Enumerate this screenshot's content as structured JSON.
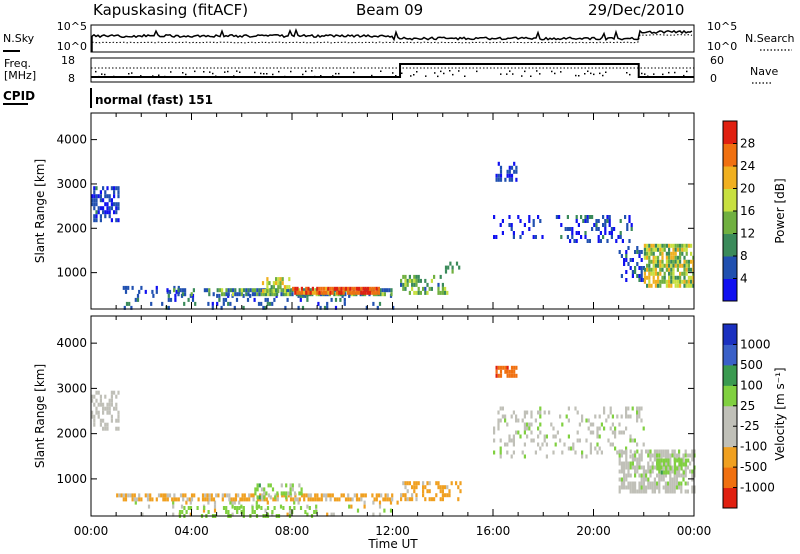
{
  "header": {
    "station": "Kapuskasing (fitACF)",
    "beam": "Beam 09",
    "date": "29/Dec/2010"
  },
  "side_labels": {
    "nsky": "N.Sky",
    "nsearch": "N.Search",
    "freq": "Freq.",
    "freq_unit": "[MHz]",
    "nave": "Nave",
    "cpid": "CPID"
  },
  "cpid_text": "normal (fast) 151",
  "top_axes": {
    "noise_left_ticks": [
      "10^5",
      "10^0"
    ],
    "noise_right_ticks": [
      "10^5",
      "10^0"
    ],
    "freq_ticks": [
      "18",
      "8"
    ],
    "nave_ticks": [
      "60",
      "0"
    ]
  },
  "colors": {
    "power_scale": [
      "#1010f0",
      "#2050b0",
      "#3a8a5a",
      "#70b040",
      "#c8e040",
      "#f0b020",
      "#f07010",
      "#e02010"
    ],
    "velocity_scale": [
      "#1a30c0",
      "#3a60c8",
      "#3a9a50",
      "#80d040",
      "#c0c0b8",
      "#c0c0b8",
      "#f0a020",
      "#f07010",
      "#e02010"
    ]
  },
  "chart_data": [
    {
      "type": "heatmap",
      "title": "Power",
      "quantity": "Power",
      "xlabel": "",
      "ylabel": "Slant Range [km]",
      "xlim": [
        "00:00",
        "24:00"
      ],
      "ylim": [
        180,
        4600
      ],
      "x_ticks": [
        "00:00",
        "04:00",
        "08:00",
        "12:00",
        "16:00",
        "20:00",
        "00:00"
      ],
      "y_ticks": [
        1000,
        2000,
        3000,
        4000
      ],
      "colorbar": {
        "label": "Power [dB]",
        "range": [
          0,
          32
        ],
        "ticks": [
          "4",
          "8",
          "12",
          "16",
          "20",
          "24",
          "28"
        ]
      },
      "regions": [
        {
          "t0": 1.3,
          "t1": 12.3,
          "r0": 180,
          "r1": 520,
          "level": 0.2,
          "density": 0.15,
          "spread": 0.1
        },
        {
          "t0": 0.0,
          "t1": 1.1,
          "r0": 2150,
          "r1": 2950,
          "level": 0.15,
          "density": 0.55,
          "spread": 0.12
        },
        {
          "t0": 1.0,
          "t1": 3.5,
          "r0": 550,
          "r1": 700,
          "level": 0.15,
          "density": 0.35,
          "spread": 0.1
        },
        {
          "t0": 3.0,
          "t1": 5.0,
          "r0": 520,
          "r1": 650,
          "level": 0.25,
          "density": 0.4,
          "spread": 0.15
        },
        {
          "t0": 5.0,
          "t1": 12.0,
          "r0": 520,
          "r1": 650,
          "level": 0.35,
          "density": 0.75,
          "spread": 0.2
        },
        {
          "t0": 6.8,
          "t1": 8.0,
          "r0": 560,
          "r1": 900,
          "level": 0.5,
          "density": 0.45,
          "spread": 0.2
        },
        {
          "t0": 8.0,
          "t1": 11.5,
          "r0": 570,
          "r1": 680,
          "level": 0.85,
          "density": 0.9,
          "spread": 0.12
        },
        {
          "t0": 12.3,
          "t1": 14.2,
          "r0": 560,
          "r1": 950,
          "level": 0.4,
          "density": 0.5,
          "spread": 0.2
        },
        {
          "t0": 14.0,
          "t1": 14.7,
          "r0": 1000,
          "r1": 1250,
          "level": 0.3,
          "density": 0.4,
          "spread": 0.1
        },
        {
          "t0": 16.1,
          "t1": 16.9,
          "r0": 3050,
          "r1": 3500,
          "level": 0.15,
          "density": 0.45,
          "spread": 0.1
        },
        {
          "t0": 16.0,
          "t1": 18.0,
          "r0": 1800,
          "r1": 2300,
          "level": 0.1,
          "density": 0.25,
          "spread": 0.1
        },
        {
          "t0": 18.5,
          "t1": 21.5,
          "r0": 1700,
          "r1": 2300,
          "level": 0.15,
          "density": 0.3,
          "spread": 0.15
        },
        {
          "t0": 21.0,
          "t1": 22.0,
          "r0": 800,
          "r1": 1600,
          "level": 0.15,
          "density": 0.35,
          "spread": 0.15
        },
        {
          "t0": 22.0,
          "t1": 24.0,
          "r0": 700,
          "r1": 1650,
          "level": 0.5,
          "density": 0.75,
          "spread": 0.25
        }
      ]
    },
    {
      "type": "heatmap",
      "title": "Velocity",
      "quantity": "Velocity",
      "xlabel": "Time UT",
      "ylabel": "Slant Range [km]",
      "xlim": [
        "00:00",
        "24:00"
      ],
      "ylim": [
        180,
        4600
      ],
      "x_ticks": [
        "00:00",
        "04:00",
        "08:00",
        "12:00",
        "16:00",
        "20:00",
        "00:00"
      ],
      "y_ticks": [
        1000,
        2000,
        3000,
        4000
      ],
      "colorbar": {
        "label": "Velocity [m s⁻¹]",
        "ticks": [
          "1000",
          "500",
          "100",
          "25",
          "-25",
          "-100",
          "-500",
          "-1000"
        ]
      },
      "regions": [
        {
          "t0": 1.3,
          "t1": 12.3,
          "r0": 180,
          "r1": 520,
          "level": 0.55,
          "density": 0.12,
          "spread": 0.2
        },
        {
          "t0": 0.0,
          "t1": 1.1,
          "r0": 2150,
          "r1": 2950,
          "level": 0.5,
          "density": 0.5,
          "spread": 0.03
        },
        {
          "t0": 1.0,
          "t1": 12.0,
          "r0": 520,
          "r1": 680,
          "level": 0.7,
          "density": 0.6,
          "spread": 0.07
        },
        {
          "t0": 6.5,
          "t1": 8.5,
          "r0": 560,
          "r1": 900,
          "level": 0.4,
          "density": 0.45,
          "spread": 0.1
        },
        {
          "t0": 3.5,
          "t1": 9.0,
          "r0": 180,
          "r1": 400,
          "level": 0.4,
          "density": 0.35,
          "spread": 0.05
        },
        {
          "t0": 12.3,
          "t1": 14.7,
          "r0": 560,
          "r1": 950,
          "level": 0.7,
          "density": 0.5,
          "spread": 0.06
        },
        {
          "t0": 16.1,
          "t1": 16.9,
          "r0": 3300,
          "r1": 3500,
          "level": 0.85,
          "density": 0.6,
          "spread": 0.05
        },
        {
          "t0": 16.0,
          "t1": 22.0,
          "r0": 1500,
          "r1": 2600,
          "level": 0.5,
          "density": 0.2,
          "spread": 0.1
        },
        {
          "t0": 21.0,
          "t1": 24.0,
          "r0": 750,
          "r1": 1650,
          "level": 0.5,
          "density": 0.7,
          "spread": 0.08
        },
        {
          "t0": 22.5,
          "t1": 23.8,
          "r0": 1100,
          "r1": 1450,
          "level": 0.38,
          "density": 0.5,
          "spread": 0.05
        }
      ]
    }
  ]
}
